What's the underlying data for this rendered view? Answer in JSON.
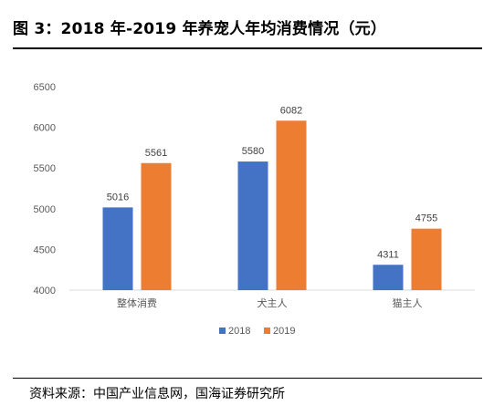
{
  "figure": {
    "title": "图 3：2018 年-2019 年养宠人年均消费情况（元）",
    "source": "资料来源：中国产业信息网，国海证券研究所"
  },
  "colors": {
    "series_2018": "#4472C4",
    "series_2019": "#ED7D31",
    "axis_line": "#D9D9D9",
    "tick_text": "#595959",
    "label_text": "#404040"
  },
  "chart_data": {
    "type": "bar",
    "categories": [
      "整体消费",
      "犬主人",
      "猫主人"
    ],
    "series": [
      {
        "name": "2018",
        "values": [
          5016,
          5580,
          4311
        ]
      },
      {
        "name": "2019",
        "values": [
          5561,
          6082,
          4755
        ]
      }
    ],
    "y_ticks": [
      "6500",
      "6000",
      "5500",
      "5000",
      "4500",
      "4000"
    ],
    "ylim": [
      4000,
      6500
    ],
    "grid": false,
    "legend_position": "bottom",
    "data_labels": true
  }
}
